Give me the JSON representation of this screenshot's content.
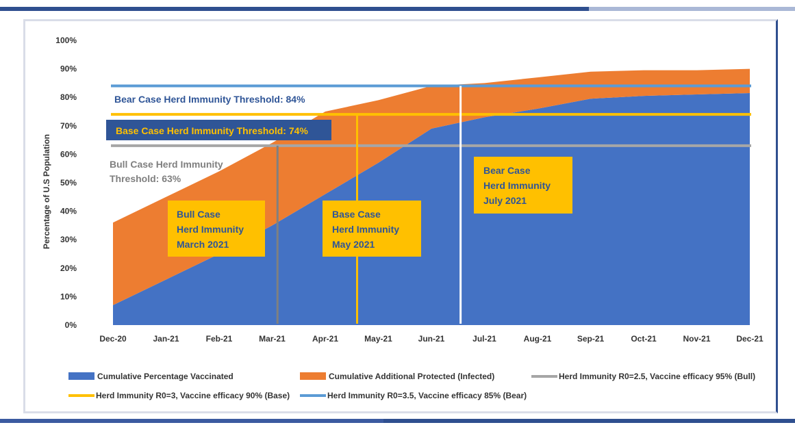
{
  "chart_data": {
    "type": "area",
    "ylabel": "Percentage of U.S Population",
    "ylim": [
      0,
      100
    ],
    "y_ticks": [
      "0%",
      "10%",
      "20%",
      "30%",
      "40%",
      "50%",
      "60%",
      "70%",
      "80%",
      "90%",
      "100%"
    ],
    "categories": [
      "Dec-20",
      "Jan-21",
      "Feb-21",
      "Mar-21",
      "Apr-21",
      "May-21",
      "Jun-21",
      "Jul-21",
      "Aug-21",
      "Sep-21",
      "Oct-21",
      "Nov-21",
      "Dec-21"
    ],
    "series": [
      {
        "name": "Cumulative Percentage Vaccinated",
        "color": "#4472c4",
        "values": [
          7,
          16,
          25,
          35,
          46,
          57,
          69,
          73,
          76,
          79.5,
          80.5,
          81,
          81.5
        ]
      },
      {
        "name": "Cumulative Additional Protected (Infected)",
        "color": "#ed7d31",
        "values": [
          29,
          29,
          29,
          29,
          29,
          22,
          15,
          12,
          11,
          9.5,
          9,
          8.5,
          8.5
        ]
      }
    ],
    "thresholds": [
      {
        "name": "Herd Immunity R0=2.5, Vaccine efficacy 95% (Bull)",
        "value": 63,
        "color": "#a6a6a6"
      },
      {
        "name": "Herd Immunity R0=3, Vaccine efficacy 90% (Base)",
        "value": 74,
        "color": "#ffc000"
      },
      {
        "name": "Herd Immunity R0=3.5, Vaccine efficacy 85% (Bear)",
        "value": 84,
        "color": "#5b9bd5"
      }
    ],
    "markers": [
      {
        "case": "bull",
        "x": 3.1,
        "value": 63,
        "color": "#808080"
      },
      {
        "case": "base",
        "x": 4.6,
        "value": 74,
        "color": "#ffc000"
      },
      {
        "case": "bear",
        "x": 6.55,
        "value": 84,
        "color": "#ffffff"
      }
    ],
    "annotations": {
      "bear_threshold": "Bear Case Herd Immunity Threshold: 84%",
      "base_threshold": "Base Case Herd Immunity Threshold: 74%",
      "bull_threshold_line1": "Bull Case Herd Immunity",
      "bull_threshold_line2": "Threshold: 63%",
      "bull_box": [
        "Bull Case",
        "Herd Immunity",
        "March 2021"
      ],
      "base_box": [
        "Base Case",
        "Herd Immunity",
        "May 2021"
      ],
      "bear_box": [
        "Bear Case",
        "Herd Immunity",
        "July 2021"
      ]
    },
    "legend": [
      {
        "label": "Cumulative Percentage Vaccinated",
        "kind": "swatch",
        "color": "#4472c4"
      },
      {
        "label": "Cumulative Additional Protected (Infected)",
        "kind": "swatch",
        "color": "#ed7d31"
      },
      {
        "label": "Herd Immunity R0=2.5, Vaccine efficacy 95% (Bull)",
        "kind": "line",
        "color": "#a6a6a6"
      },
      {
        "label": "Herd Immunity R0=3, Vaccine efficacy 90% (Base)",
        "kind": "line",
        "color": "#ffc000"
      },
      {
        "label": "Herd Immunity R0=3.5, Vaccine efficacy 85% (Bear)",
        "kind": "line",
        "color": "#5b9bd5"
      }
    ],
    "legend_position": "bottom",
    "grid": false
  }
}
